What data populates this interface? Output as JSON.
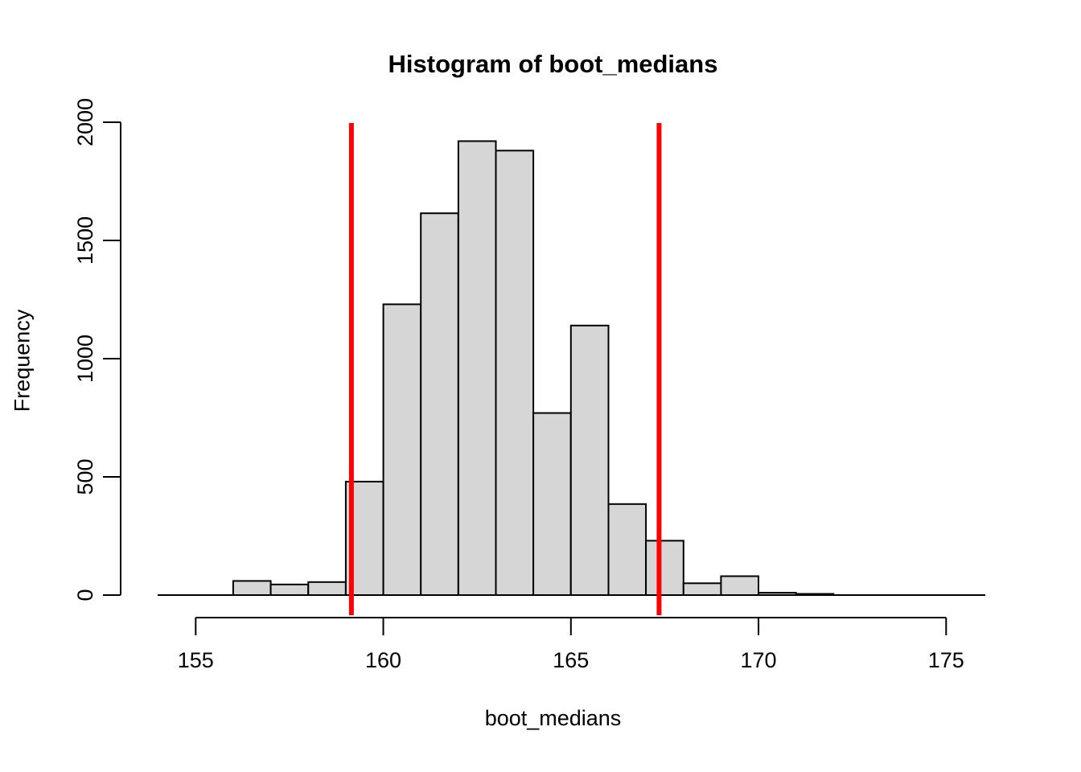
{
  "chart_data": {
    "type": "bar",
    "subtype": "histogram",
    "title": "Histogram of boot_medians",
    "xlabel": "boot_medians",
    "ylabel": "Frequency",
    "bin_start": 156,
    "bin_width": 1,
    "bin_edges": [
      156,
      157,
      158,
      159,
      160,
      161,
      162,
      163,
      164,
      165,
      166,
      167,
      168,
      169,
      170,
      171,
      172
    ],
    "counts": [
      60,
      45,
      55,
      480,
      1230,
      1615,
      1920,
      1880,
      770,
      1140,
      385,
      230,
      50,
      80,
      10,
      5
    ],
    "x_ticks": [
      155,
      160,
      165,
      170,
      175
    ],
    "y_ticks": [
      0,
      500,
      1000,
      1500,
      2000
    ],
    "xlim": [
      153,
      176
    ],
    "ylim": [
      0,
      2000
    ],
    "grid": false,
    "legend": "none",
    "vlines": [
      {
        "name": "ci-lower-line",
        "x": 159.15,
        "color": "#FF0000"
      },
      {
        "name": "ci-upper-line",
        "x": 167.35,
        "color": "#FF0000"
      }
    ],
    "bar_fill": "#D6D6D6",
    "bar_stroke": "#000000",
    "axis_color": "#000000"
  }
}
